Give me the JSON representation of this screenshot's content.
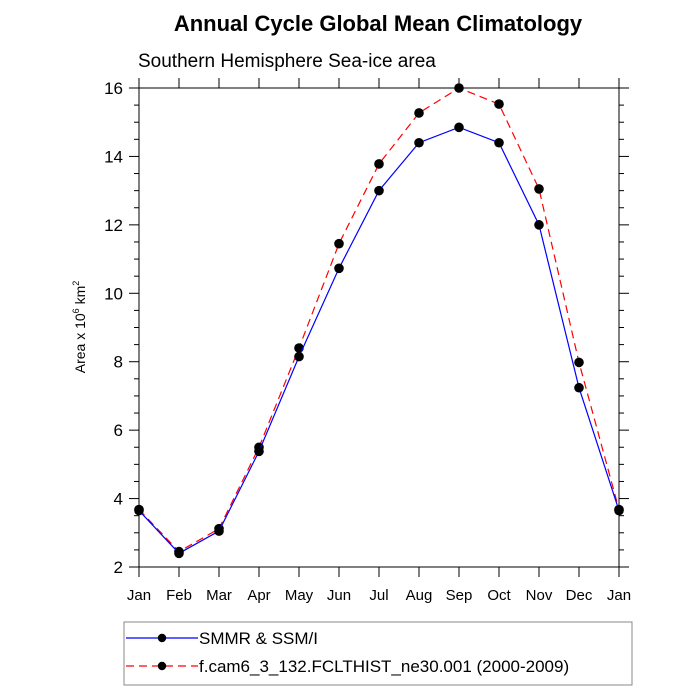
{
  "chart_data": {
    "type": "line",
    "title": "Annual Cycle Global Mean Climatology",
    "subtitle": "Southern Hemisphere Sea-ice area",
    "xlabel": "",
    "ylabel": "Area x 10",
    "ylabel_sup": "6",
    "ylabel_unit": " km",
    "ylabel_unit_sup": "2",
    "categories": [
      "Jan",
      "Feb",
      "Mar",
      "Apr",
      "May",
      "Jun",
      "Jul",
      "Aug",
      "Sep",
      "Oct",
      "Nov",
      "Dec",
      "Jan"
    ],
    "ylim": [
      2,
      16
    ],
    "yticks": [
      2,
      4,
      6,
      8,
      10,
      12,
      14,
      16
    ],
    "y_minor_step": 0.5,
    "grid": false,
    "legend_placement": "bottom",
    "series": [
      {
        "name": "SMMR & SSM/I",
        "color": "#0000ff",
        "dash": "solid",
        "values": [
          3.65,
          2.4,
          3.05,
          5.38,
          8.15,
          10.73,
          13.0,
          14.4,
          14.85,
          14.4,
          12.0,
          7.24,
          3.65
        ]
      },
      {
        "name": "f.cam6_3_132.FCLTHIST_ne30.001 (2000-2009)",
        "color": "#ff0000",
        "dash": "dashed",
        "values": [
          3.68,
          2.45,
          3.12,
          5.5,
          8.4,
          11.45,
          13.78,
          15.27,
          16.0,
          15.53,
          13.05,
          7.98,
          3.68
        ]
      }
    ]
  }
}
